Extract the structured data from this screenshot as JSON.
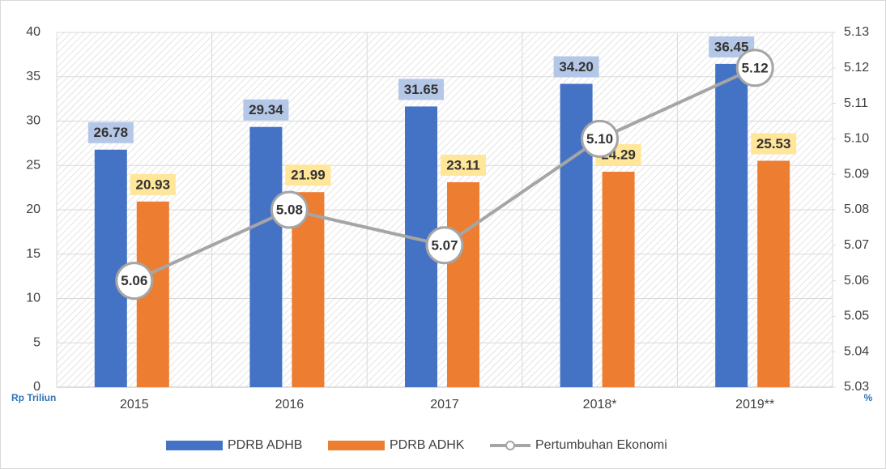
{
  "chart_data": {
    "type": "bar_line",
    "categories": [
      "2015",
      "2016",
      "2017",
      "2018*",
      "2019**"
    ],
    "series": [
      {
        "name": "PDRB ADHB",
        "color": "#4472c4",
        "values": [
          26.78,
          29.34,
          31.65,
          34.2,
          36.45
        ],
        "value_labels": [
          "26.78",
          "29.34",
          "31.65",
          "34.20",
          "36.45"
        ]
      },
      {
        "name": "PDRB ADHK",
        "color": "#ed7d31",
        "values": [
          20.93,
          21.99,
          23.11,
          24.29,
          25.53
        ],
        "value_labels": [
          "20.93",
          "21.99",
          "23.11",
          "24.29",
          "25.53"
        ]
      },
      {
        "name": "Pertumbuhan Ekonomi",
        "color": "#a5a5a5",
        "axis": "y2",
        "values": [
          5.06,
          5.08,
          5.07,
          5.1,
          5.12
        ],
        "value_labels": [
          "5.06",
          "5.08",
          "5.07",
          "5.10",
          "5.12"
        ]
      }
    ],
    "ylabel": "Rp Triliun",
    "y2label": "%",
    "ylim": [
      0,
      40
    ],
    "yticks": [
      0,
      5,
      10,
      15,
      20,
      25,
      30,
      35,
      40
    ],
    "y2lim": [
      5.03,
      5.13
    ],
    "y2ticks": [
      5.03,
      5.04,
      5.05,
      5.06,
      5.07,
      5.08,
      5.09,
      {
        "value": 5.1,
        "label": "5.10"
      },
      5.11,
      5.12,
      5.13
    ],
    "grid": true,
    "legend": "bottom"
  }
}
